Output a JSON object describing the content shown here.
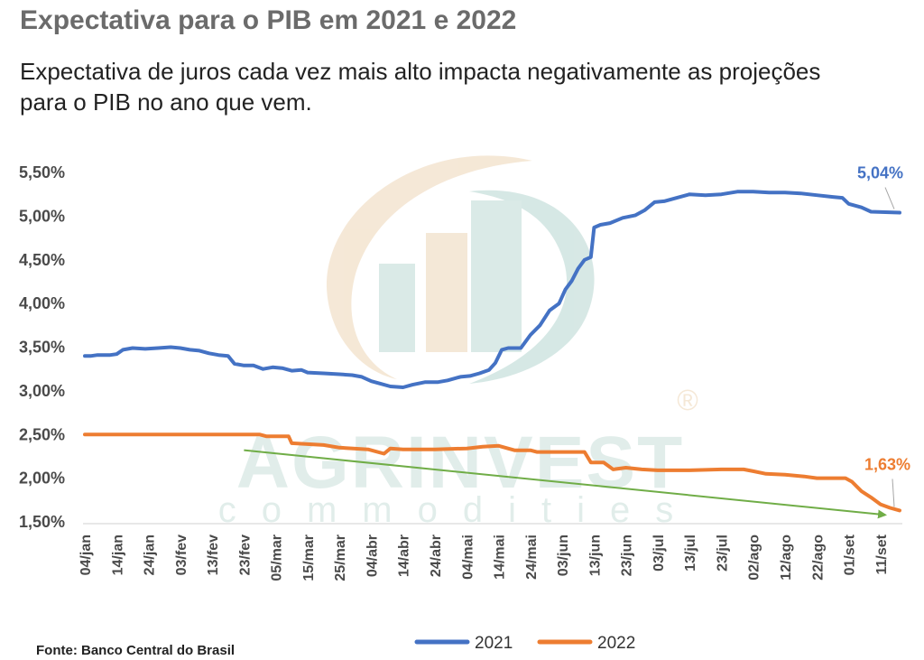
{
  "header": {
    "title": "Expectativa para o PIB em 2021 e 2022",
    "subtitle": "Expectativa de juros cada vez mais alto impacta negativamente as projeções para o PIB no ano que vem."
  },
  "footer": {
    "source": "Fonte: Banco  Central do Brasil"
  },
  "watermark": {
    "brand": "AGRINVEST",
    "sub": "commodities",
    "registered": "®"
  },
  "colors": {
    "s2021": "#4472C4",
    "s2022": "#ED7D31",
    "trend": "#70AD47"
  },
  "chart_data": {
    "type": "line",
    "title": "Expectativa para o PIB em 2021 e 2022",
    "xlabel": "",
    "ylabel": "",
    "ylim": [
      0.015,
      0.055
    ],
    "yticks": [
      0.015,
      0.02,
      0.025,
      0.03,
      0.035,
      0.04,
      0.045,
      0.05,
      0.055
    ],
    "ytick_labels": [
      "1,50%",
      "2,00%",
      "2,50%",
      "3,00%",
      "3,50%",
      "4,00%",
      "4,50%",
      "5,00%",
      "5,50%"
    ],
    "x_range": [
      "2021-01-04",
      "2021-09-17"
    ],
    "xticks": [
      "2021-01-04",
      "2021-01-14",
      "2021-01-24",
      "2021-02-03",
      "2021-02-13",
      "2021-02-23",
      "2021-03-05",
      "2021-03-15",
      "2021-03-25",
      "2021-04-04",
      "2021-04-14",
      "2021-04-24",
      "2021-05-04",
      "2021-05-14",
      "2021-05-24",
      "2021-06-03",
      "2021-06-13",
      "2021-06-23",
      "2021-07-03",
      "2021-07-13",
      "2021-07-23",
      "2021-08-02",
      "2021-08-12",
      "2021-08-22",
      "2021-09-01",
      "2021-09-11"
    ],
    "xtick_labels": [
      "04/jan",
      "14/jan",
      "24/jan",
      "03/fev",
      "13/fev",
      "23/fev",
      "05/mar",
      "15/mar",
      "25/mar",
      "04/abr",
      "14/abr",
      "24/abr",
      "04/mai",
      "14/mai",
      "24/mai",
      "03/jun",
      "13/jun",
      "23/jun",
      "03/jul",
      "13/jul",
      "23/jul",
      "02/ago",
      "12/ago",
      "22/ago",
      "01/set",
      "11/set"
    ],
    "legend": "bottom-center",
    "grid": false,
    "series": [
      {
        "name": "2021",
        "points": [
          [
            "2021-01-04",
            0.034
          ],
          [
            "2021-01-06",
            0.034
          ],
          [
            "2021-01-08",
            0.0341
          ],
          [
            "2021-01-12",
            0.0341
          ],
          [
            "2021-01-14",
            0.0342
          ],
          [
            "2021-01-16",
            0.0347
          ],
          [
            "2021-01-19",
            0.0349
          ],
          [
            "2021-01-23",
            0.0348
          ],
          [
            "2021-01-27",
            0.0349
          ],
          [
            "2021-01-31",
            0.035
          ],
          [
            "2021-02-03",
            0.0349
          ],
          [
            "2021-02-06",
            0.0347
          ],
          [
            "2021-02-09",
            0.0346
          ],
          [
            "2021-02-12",
            0.0343
          ],
          [
            "2021-02-15",
            0.0341
          ],
          [
            "2021-02-18",
            0.034
          ],
          [
            "2021-02-20",
            0.0331
          ],
          [
            "2021-02-23",
            0.0329
          ],
          [
            "2021-02-26",
            0.0329
          ],
          [
            "2021-03-01",
            0.0325
          ],
          [
            "2021-03-04",
            0.0327
          ],
          [
            "2021-03-07",
            0.0326
          ],
          [
            "2021-03-10",
            0.0323
          ],
          [
            "2021-03-13",
            0.0324
          ],
          [
            "2021-03-15",
            0.0321
          ],
          [
            "2021-03-20",
            0.032
          ],
          [
            "2021-03-25",
            0.0319
          ],
          [
            "2021-03-29",
            0.0318
          ],
          [
            "2021-04-01",
            0.0316
          ],
          [
            "2021-04-04",
            0.0311
          ],
          [
            "2021-04-07",
            0.0308
          ],
          [
            "2021-04-10",
            0.0305
          ],
          [
            "2021-04-14",
            0.0304
          ],
          [
            "2021-04-17",
            0.0307
          ],
          [
            "2021-04-21",
            0.031
          ],
          [
            "2021-04-25",
            0.031
          ],
          [
            "2021-04-28",
            0.0312
          ],
          [
            "2021-05-02",
            0.0316
          ],
          [
            "2021-05-05",
            0.0317
          ],
          [
            "2021-05-08",
            0.032
          ],
          [
            "2021-05-11",
            0.0324
          ],
          [
            "2021-05-13",
            0.0332
          ],
          [
            "2021-05-15",
            0.0347
          ],
          [
            "2021-05-17",
            0.0349
          ],
          [
            "2021-05-21",
            0.0349
          ],
          [
            "2021-05-24",
            0.0364
          ],
          [
            "2021-05-27",
            0.0375
          ],
          [
            "2021-05-30",
            0.0392
          ],
          [
            "2021-06-02",
            0.04
          ],
          [
            "2021-06-04",
            0.0416
          ],
          [
            "2021-06-06",
            0.0426
          ],
          [
            "2021-06-08",
            0.044
          ],
          [
            "2021-06-10",
            0.045
          ],
          [
            "2021-06-12",
            0.0453
          ],
          [
            "2021-06-13",
            0.0487
          ],
          [
            "2021-06-15",
            0.049
          ],
          [
            "2021-06-18",
            0.0492
          ],
          [
            "2021-06-22",
            0.0498
          ],
          [
            "2021-06-26",
            0.0501
          ],
          [
            "2021-06-29",
            0.0507
          ],
          [
            "2021-07-02",
            0.0516
          ],
          [
            "2021-07-05",
            0.0517
          ],
          [
            "2021-07-09",
            0.0521
          ],
          [
            "2021-07-13",
            0.0525
          ],
          [
            "2021-07-18",
            0.0524
          ],
          [
            "2021-07-23",
            0.0525
          ],
          [
            "2021-07-28",
            0.0528
          ],
          [
            "2021-08-02",
            0.0528
          ],
          [
            "2021-08-07",
            0.0527
          ],
          [
            "2021-08-12",
            0.0527
          ],
          [
            "2021-08-17",
            0.0526
          ],
          [
            "2021-08-22",
            0.0524
          ],
          [
            "2021-08-27",
            0.0522
          ],
          [
            "2021-08-30",
            0.0521
          ],
          [
            "2021-09-01",
            0.0514
          ],
          [
            "2021-09-05",
            0.051
          ],
          [
            "2021-09-08",
            0.0505
          ],
          [
            "2021-09-17",
            0.0504
          ]
        ]
      },
      {
        "name": "2022",
        "points": [
          [
            "2021-01-04",
            0.025
          ],
          [
            "2021-02-28",
            0.025
          ],
          [
            "2021-03-02",
            0.0248
          ],
          [
            "2021-03-09",
            0.0248
          ],
          [
            "2021-03-10",
            0.024
          ],
          [
            "2021-03-20",
            0.0238
          ],
          [
            "2021-03-25",
            0.0235
          ],
          [
            "2021-04-03",
            0.0233
          ],
          [
            "2021-04-08",
            0.0228
          ],
          [
            "2021-04-10",
            0.0234
          ],
          [
            "2021-04-14",
            0.0233
          ],
          [
            "2021-04-24",
            0.0233
          ],
          [
            "2021-05-04",
            0.0234
          ],
          [
            "2021-05-09",
            0.0236
          ],
          [
            "2021-05-14",
            0.0237
          ],
          [
            "2021-05-19",
            0.0232
          ],
          [
            "2021-05-24",
            0.0232
          ],
          [
            "2021-05-26",
            0.023
          ],
          [
            "2021-06-03",
            0.023
          ],
          [
            "2021-06-10",
            0.023
          ],
          [
            "2021-06-12",
            0.0218
          ],
          [
            "2021-06-16",
            0.0218
          ],
          [
            "2021-06-19",
            0.021
          ],
          [
            "2021-06-23",
            0.0212
          ],
          [
            "2021-06-28",
            0.021
          ],
          [
            "2021-07-03",
            0.0209
          ],
          [
            "2021-07-13",
            0.0209
          ],
          [
            "2021-07-23",
            0.021
          ],
          [
            "2021-07-30",
            0.021
          ],
          [
            "2021-08-02",
            0.0208
          ],
          [
            "2021-08-06",
            0.0205
          ],
          [
            "2021-08-12",
            0.0204
          ],
          [
            "2021-08-18",
            0.0202
          ],
          [
            "2021-08-22",
            0.02
          ],
          [
            "2021-08-31",
            0.02
          ],
          [
            "2021-09-02",
            0.0196
          ],
          [
            "2021-09-05",
            0.0185
          ],
          [
            "2021-09-08",
            0.0178
          ],
          [
            "2021-09-11",
            0.017
          ],
          [
            "2021-09-14",
            0.0166
          ],
          [
            "2021-09-17",
            0.0163
          ]
        ]
      }
    ],
    "trendline": {
      "from": [
        "2021-02-23",
        0.0232
      ],
      "to": [
        "2021-09-17",
        0.0158
      ]
    },
    "annotations": [
      {
        "series": "2021",
        "text": "5,04%",
        "x": "2021-09-17",
        "y": 0.0504
      },
      {
        "series": "2022",
        "text": "1,63%",
        "x": "2021-09-17",
        "y": 0.0163
      }
    ]
  }
}
